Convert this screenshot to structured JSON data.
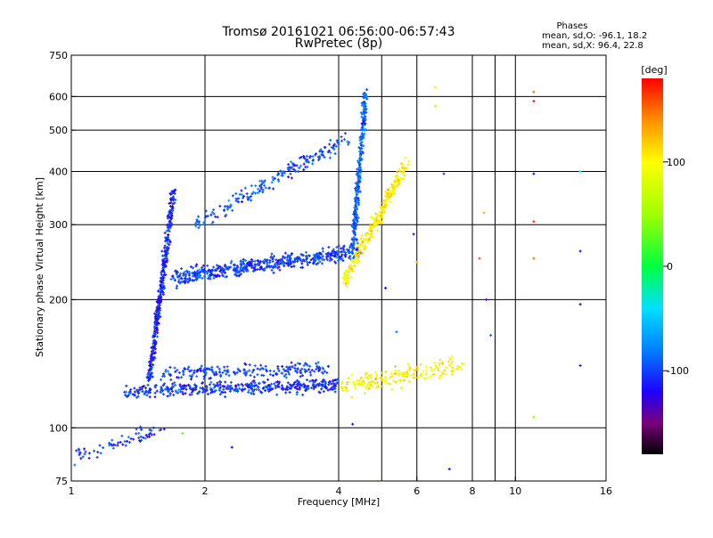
{
  "header": {
    "title_line1": "Tromsø 20161021 06:56:00-06:57:43",
    "title_line2": "RwPretec (8p)"
  },
  "stats": {
    "heading": "Phases",
    "line_o": "mean, sd,O: -96.1, 18.2",
    "line_x": "mean, sd,X:  96.4, 22.8"
  },
  "colorbar": {
    "unit_label": "[deg]",
    "range": [
      -180,
      180
    ],
    "ticks": [
      {
        "value": 100,
        "label": "100"
      },
      {
        "value": 0,
        "label": "0"
      },
      {
        "value": -100,
        "label": "-100"
      }
    ]
  },
  "chart_data": {
    "type": "scatter",
    "xlabel": "Frequency [MHz]",
    "ylabel": "Stationary phase Virtual Height [km]",
    "x_scale": "log",
    "y_scale": "log",
    "xlim": [
      1,
      16
    ],
    "ylim": [
      75,
      750
    ],
    "grid": true,
    "x_ticks": [
      {
        "value": 1,
        "label": "1"
      },
      {
        "value": 2,
        "label": "2"
      },
      {
        "value": 4,
        "label": "4"
      },
      {
        "value": 6,
        "label": "6"
      },
      {
        "value": 8,
        "label": "8"
      },
      {
        "value": 10,
        "label": "10"
      },
      {
        "value": 16,
        "label": "16"
      }
    ],
    "x_grid": [
      2,
      4,
      5,
      6,
      8,
      9,
      10
    ],
    "y_ticks": [
      {
        "value": 750,
        "label": "750"
      },
      {
        "value": 600,
        "label": "600"
      },
      {
        "value": 500,
        "label": "500"
      },
      {
        "value": 400,
        "label": "400"
      },
      {
        "value": 300,
        "label": "300"
      },
      {
        "value": 200,
        "label": "200"
      },
      {
        "value": 100,
        "label": "100"
      },
      {
        "value": 75,
        "label": "75"
      }
    ],
    "y_grid": [
      600,
      500,
      400,
      300,
      200,
      100
    ],
    "colormap": [
      {
        "v": -180,
        "color": "#000000"
      },
      {
        "v": -150,
        "color": "#7a007a"
      },
      {
        "v": -120,
        "color": "#1e00ff"
      },
      {
        "v": -80,
        "color": "#0080ff"
      },
      {
        "v": -40,
        "color": "#00e0ff"
      },
      {
        "v": 0,
        "color": "#00ff40"
      },
      {
        "v": 50,
        "color": "#a0ff00"
      },
      {
        "v": 100,
        "color": "#ffff00"
      },
      {
        "v": 140,
        "color": "#ff9000"
      },
      {
        "v": 180,
        "color": "#ff0000"
      }
    ],
    "traces": [
      {
        "name": "O-mode E trace",
        "x0": 1.33,
        "x1": 4.0,
        "y0": 122,
        "y1": 126,
        "phase": -105,
        "spread": 0.03,
        "n": 420
      },
      {
        "name": "O-mode E trace upper",
        "x0": 1.6,
        "x1": 3.8,
        "y0": 134,
        "y1": 138,
        "phase": -100,
        "spread": 0.03,
        "n": 200
      },
      {
        "name": "X-mode E trace",
        "x0": 4.0,
        "x1": 7.6,
        "y0": 125,
        "y1": 140,
        "phase": 100,
        "spread": 0.045,
        "n": 190
      },
      {
        "name": "Es near-vertical column",
        "x0": 1.5,
        "x1": 1.7,
        "y0": 130,
        "y1": 360,
        "phase": -110,
        "spread": 0.02,
        "n": 380
      },
      {
        "name": "F trace",
        "x0": 1.7,
        "x1": 4.45,
        "y0": 225,
        "y1": 260,
        "phase": -100,
        "spread": 0.035,
        "n": 520
      },
      {
        "name": "F cusp",
        "x0": 4.3,
        "x1": 4.6,
        "y0": 260,
        "y1": 620,
        "phase": -90,
        "spread": 0.03,
        "n": 260
      },
      {
        "name": "X-mode F trace",
        "x0": 4.1,
        "x1": 5.7,
        "y0": 220,
        "y1": 420,
        "phase": 105,
        "spread": 0.04,
        "n": 260
      },
      {
        "name": "Multi-hop trace",
        "x0": 1.9,
        "x1": 4.2,
        "y0": 300,
        "y1": 480,
        "phase": -95,
        "spread": 0.035,
        "n": 190
      },
      {
        "name": "Low noise",
        "x0": 1.0,
        "x1": 1.6,
        "y0": 85,
        "y1": 100,
        "phase": -105,
        "spread": 0.03,
        "n": 70
      }
    ],
    "scatter_points": [
      {
        "x": 6.6,
        "y": 630,
        "phase": 110
      },
      {
        "x": 6.6,
        "y": 570,
        "phase": 60
      },
      {
        "x": 6.9,
        "y": 395,
        "phase": -100
      },
      {
        "x": 11.0,
        "y": 615,
        "phase": 150
      },
      {
        "x": 11.0,
        "y": 585,
        "phase": 180
      },
      {
        "x": 11.0,
        "y": 395,
        "phase": -120
      },
      {
        "x": 11.0,
        "y": 305,
        "phase": 170
      },
      {
        "x": 11.0,
        "y": 250,
        "phase": 150
      },
      {
        "x": 14.0,
        "y": 400,
        "phase": -40
      },
      {
        "x": 14.0,
        "y": 260,
        "phase": -120
      },
      {
        "x": 14.0,
        "y": 195,
        "phase": -120
      },
      {
        "x": 14.0,
        "y": 140,
        "phase": -120
      },
      {
        "x": 11.0,
        "y": 106,
        "phase": 40
      },
      {
        "x": 6.0,
        "y": 245,
        "phase": 130
      },
      {
        "x": 5.9,
        "y": 285,
        "phase": -120
      },
      {
        "x": 8.5,
        "y": 320,
        "phase": 130
      },
      {
        "x": 8.6,
        "y": 200,
        "phase": -130
      },
      {
        "x": 8.8,
        "y": 165,
        "phase": -90
      },
      {
        "x": 8.3,
        "y": 250,
        "phase": 160
      },
      {
        "x": 7.1,
        "y": 80,
        "phase": -120
      },
      {
        "x": 4.9,
        "y": 75,
        "phase": 110
      },
      {
        "x": 4.3,
        "y": 102,
        "phase": -120
      },
      {
        "x": 2.3,
        "y": 90,
        "phase": -120
      },
      {
        "x": 1.78,
        "y": 97,
        "phase": 30
      },
      {
        "x": 1.1,
        "y": 74,
        "phase": 120
      },
      {
        "x": 5.4,
        "y": 168,
        "phase": -80
      },
      {
        "x": 5.1,
        "y": 213,
        "phase": -120
      }
    ]
  }
}
